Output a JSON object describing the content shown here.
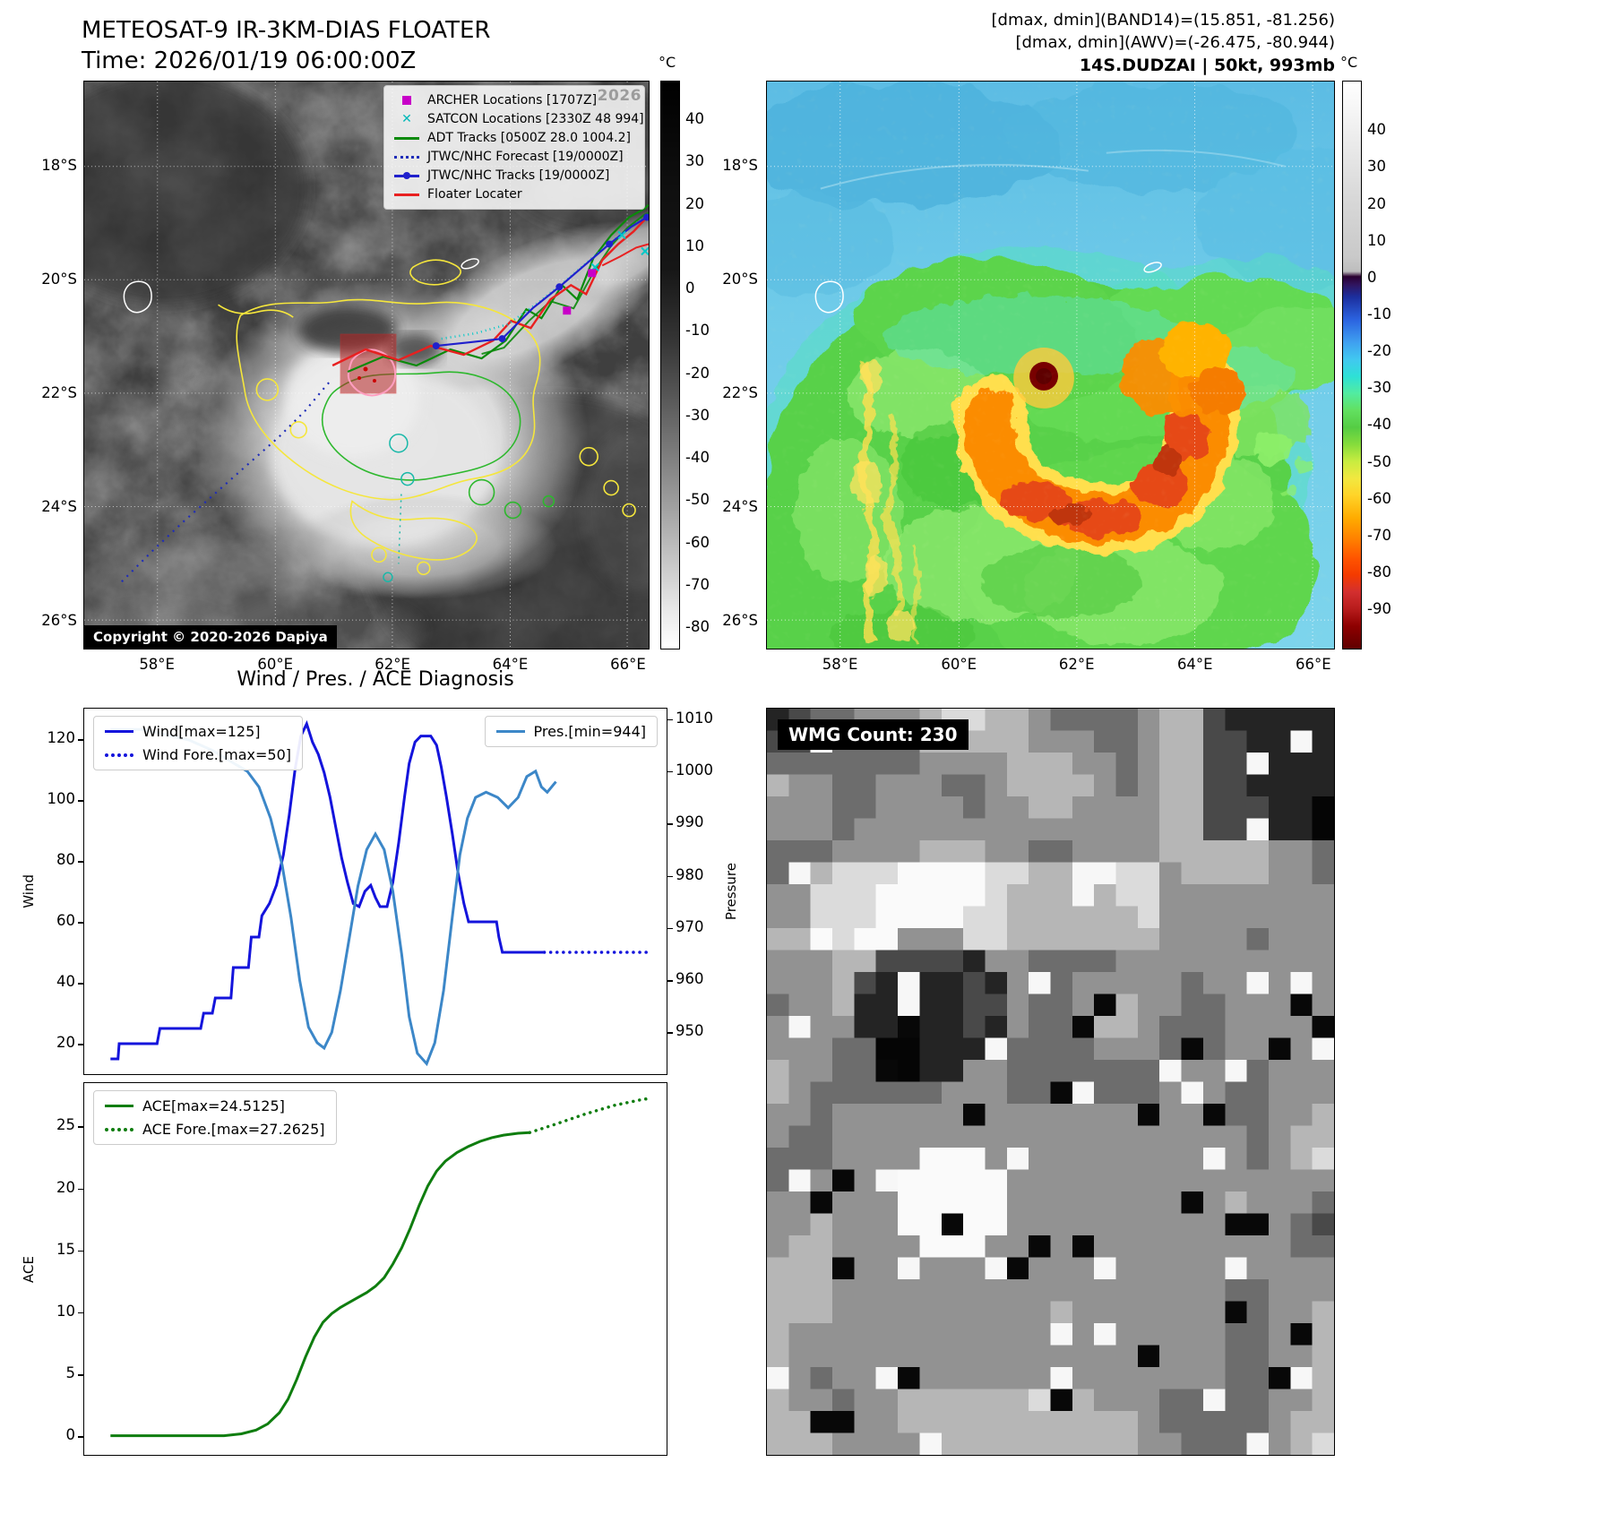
{
  "left_panel": {
    "title": "METEOSAT-9 IR-3KM-DIAS FLOATER",
    "time_line": "Time: 2026/01/19 06:00:00Z",
    "watermark": "2026",
    "copyright": "Copyright © 2020-2026 Dapiya",
    "legend_items": [
      {
        "label": "ARCHER Locations [1707Z]",
        "marker": "square",
        "color": "#c800c8"
      },
      {
        "label": "SATCON Locations [2330Z 48 994]",
        "marker": "x",
        "color": "#00b8b8"
      },
      {
        "label": "ADT Tracks [0500Z 28.0 1004.2]",
        "marker": "line",
        "color": "#0a8a0a"
      },
      {
        "label": "JTWC/NHC Forecast [19/0000Z]",
        "marker": "dotted",
        "color": "#1f2db8"
      },
      {
        "label": "JTWC/NHC Tracks [19/0000Z]",
        "marker": "line-dot",
        "color": "#2020cc"
      },
      {
        "label": "Floater Locater",
        "marker": "line",
        "color": "#e82020"
      }
    ],
    "colorbar_unit": "°C",
    "colorbar_ticks": [
      40,
      30,
      20,
      10,
      0,
      -10,
      -20,
      -30,
      -40,
      -50,
      -60,
      -70,
      -80
    ],
    "lat_ticks": [
      "18°S",
      "20°S",
      "22°S",
      "24°S",
      "26°S"
    ],
    "lon_ticks": [
      "58°E",
      "60°E",
      "62°E",
      "64°E",
      "66°E"
    ]
  },
  "right_panel": {
    "header_lines": [
      "[dmax, dmin](BAND14)=(15.851, -81.256)",
      "[dmax, dmin](AWV)=(-26.475, -80.944)",
      "14S.DUDZAI | 50kt, 993mb"
    ],
    "colorbar_unit": "°C",
    "colorbar_ticks": [
      40,
      30,
      20,
      10,
      0,
      -10,
      -20,
      -30,
      -40,
      -50,
      -60,
      -70,
      -80,
      -90
    ],
    "lat_ticks": [
      "18°S",
      "20°S",
      "22°S",
      "24°S",
      "26°S"
    ],
    "lon_ticks": [
      "58°E",
      "60°E",
      "62°E",
      "64°E",
      "66°E"
    ]
  },
  "diagnosis_title": "Wind / Pres. / ACE Diagnosis",
  "wmg_label": "WMG Count: 230",
  "chart_data": [
    {
      "type": "line",
      "title": "Wind / Pres. / ACE Diagnosis",
      "xlim": [
        0,
        1
      ],
      "ylabel_left": "Wind",
      "ylim_left": [
        10,
        130
      ],
      "yticks_left": [
        120,
        100,
        80,
        60,
        40,
        20
      ],
      "ylabel_right": "Pressure",
      "ylim_right": [
        942,
        1012
      ],
      "yticks_right": [
        1010,
        1000,
        990,
        980,
        970,
        960,
        950
      ],
      "legend_left": [
        "Wind[max=125]",
        "Wind Fore.[max=50]"
      ],
      "legend_right": [
        "Pres.[min=944]"
      ],
      "series": [
        {
          "name": "Wind[max=125]",
          "axis": "left",
          "style": "solid",
          "color": "#1414dc",
          "points": [
            [
              0.045,
              15
            ],
            [
              0.058,
              15
            ],
            [
              0.06,
              20
            ],
            [
              0.125,
              20
            ],
            [
              0.13,
              25
            ],
            [
              0.2,
              25
            ],
            [
              0.205,
              30
            ],
            [
              0.22,
              30
            ],
            [
              0.225,
              35
            ],
            [
              0.252,
              35
            ],
            [
              0.256,
              45
            ],
            [
              0.282,
              45
            ],
            [
              0.287,
              55
            ],
            [
              0.3,
              55
            ],
            [
              0.305,
              62
            ],
            [
              0.318,
              66
            ],
            [
              0.33,
              72
            ],
            [
              0.342,
              82
            ],
            [
              0.352,
              95
            ],
            [
              0.362,
              110
            ],
            [
              0.372,
              121
            ],
            [
              0.382,
              125
            ],
            [
              0.392,
              119
            ],
            [
              0.402,
              115
            ],
            [
              0.412,
              109
            ],
            [
              0.422,
              101
            ],
            [
              0.432,
              91
            ],
            [
              0.442,
              81
            ],
            [
              0.452,
              73
            ],
            [
              0.462,
              66
            ],
            [
              0.472,
              65
            ],
            [
              0.482,
              70
            ],
            [
              0.492,
              72
            ],
            [
              0.5,
              68
            ],
            [
              0.508,
              65
            ],
            [
              0.52,
              65
            ],
            [
              0.53,
              73
            ],
            [
              0.54,
              86
            ],
            [
              0.55,
              101
            ],
            [
              0.558,
              112
            ],
            [
              0.568,
              119
            ],
            [
              0.578,
              121
            ],
            [
              0.595,
              121
            ],
            [
              0.605,
              118
            ],
            [
              0.613,
              111
            ],
            [
              0.622,
              101
            ],
            [
              0.632,
              89
            ],
            [
              0.642,
              76
            ],
            [
              0.652,
              66
            ],
            [
              0.66,
              60
            ],
            [
              0.708,
              60
            ],
            [
              0.712,
              55
            ],
            [
              0.718,
              50
            ],
            [
              0.79,
              50
            ]
          ]
        },
        {
          "name": "Wind Fore.[max=50]",
          "axis": "left",
          "style": "dotted",
          "color": "#1414dc",
          "points": [
            [
              0.79,
              50
            ],
            [
              0.97,
              50
            ]
          ]
        },
        {
          "name": "Pres.[min=944]",
          "axis": "right",
          "style": "solid",
          "color": "#3c87c8",
          "points": [
            [
              0.045,
              1008
            ],
            [
              0.1,
              1008
            ],
            [
              0.14,
              1007
            ],
            [
              0.18,
              1006
            ],
            [
              0.22,
              1004
            ],
            [
              0.25,
              1002
            ],
            [
              0.28,
              1000
            ],
            [
              0.3,
              997
            ],
            [
              0.32,
              991
            ],
            [
              0.34,
              982
            ],
            [
              0.355,
              972
            ],
            [
              0.37,
              960
            ],
            [
              0.385,
              951
            ],
            [
              0.4,
              948
            ],
            [
              0.412,
              947
            ],
            [
              0.425,
              950
            ],
            [
              0.44,
              958
            ],
            [
              0.455,
              968
            ],
            [
              0.47,
              978
            ],
            [
              0.485,
              985
            ],
            [
              0.5,
              988
            ],
            [
              0.515,
              985
            ],
            [
              0.53,
              977
            ],
            [
              0.545,
              965
            ],
            [
              0.558,
              953
            ],
            [
              0.572,
              946
            ],
            [
              0.588,
              944
            ],
            [
              0.602,
              948
            ],
            [
              0.617,
              958
            ],
            [
              0.632,
              972
            ],
            [
              0.645,
              984
            ],
            [
              0.658,
              991
            ],
            [
              0.672,
              995
            ],
            [
              0.69,
              996
            ],
            [
              0.71,
              995
            ],
            [
              0.728,
              993
            ],
            [
              0.745,
              995
            ],
            [
              0.76,
              999
            ],
            [
              0.775,
              1000
            ],
            [
              0.785,
              997
            ],
            [
              0.795,
              996
            ],
            [
              0.81,
              998
            ]
          ]
        }
      ]
    },
    {
      "type": "line",
      "xlim": [
        0,
        1
      ],
      "ylabel_left": "ACE",
      "ylim_left": [
        -1.5,
        28.5
      ],
      "yticks_left": [
        25,
        20,
        15,
        10,
        5,
        0
      ],
      "legend_left": [
        "ACE[max=24.5125]",
        "ACE Fore.[max=27.2625]"
      ],
      "series": [
        {
          "name": "ACE[max=24.5125]",
          "axis": "left",
          "style": "solid",
          "color": "#0f7d0f",
          "points": [
            [
              0.045,
              0.05
            ],
            [
              0.24,
              0.05
            ],
            [
              0.27,
              0.2
            ],
            [
              0.295,
              0.5
            ],
            [
              0.315,
              1.0
            ],
            [
              0.335,
              1.9
            ],
            [
              0.35,
              3.0
            ],
            [
              0.365,
              4.6
            ],
            [
              0.38,
              6.4
            ],
            [
              0.395,
              8.0
            ],
            [
              0.41,
              9.2
            ],
            [
              0.425,
              9.9
            ],
            [
              0.44,
              10.4
            ],
            [
              0.455,
              10.8
            ],
            [
              0.47,
              11.2
            ],
            [
              0.485,
              11.6
            ],
            [
              0.5,
              12.1
            ],
            [
              0.515,
              12.8
            ],
            [
              0.53,
              13.9
            ],
            [
              0.545,
              15.2
            ],
            [
              0.56,
              16.8
            ],
            [
              0.575,
              18.6
            ],
            [
              0.59,
              20.2
            ],
            [
              0.605,
              21.4
            ],
            [
              0.62,
              22.2
            ],
            [
              0.64,
              22.9
            ],
            [
              0.66,
              23.4
            ],
            [
              0.68,
              23.8
            ],
            [
              0.7,
              24.1
            ],
            [
              0.72,
              24.3
            ],
            [
              0.745,
              24.45
            ],
            [
              0.765,
              24.51
            ]
          ]
        },
        {
          "name": "ACE Fore.[max=27.2625]",
          "axis": "left",
          "style": "dotted",
          "color": "#0f7d0f",
          "points": [
            [
              0.765,
              24.51
            ],
            [
              0.81,
              25.2
            ],
            [
              0.86,
              26.0
            ],
            [
              0.91,
              26.7
            ],
            [
              0.955,
              27.15
            ],
            [
              0.97,
              27.26
            ]
          ]
        }
      ]
    }
  ]
}
